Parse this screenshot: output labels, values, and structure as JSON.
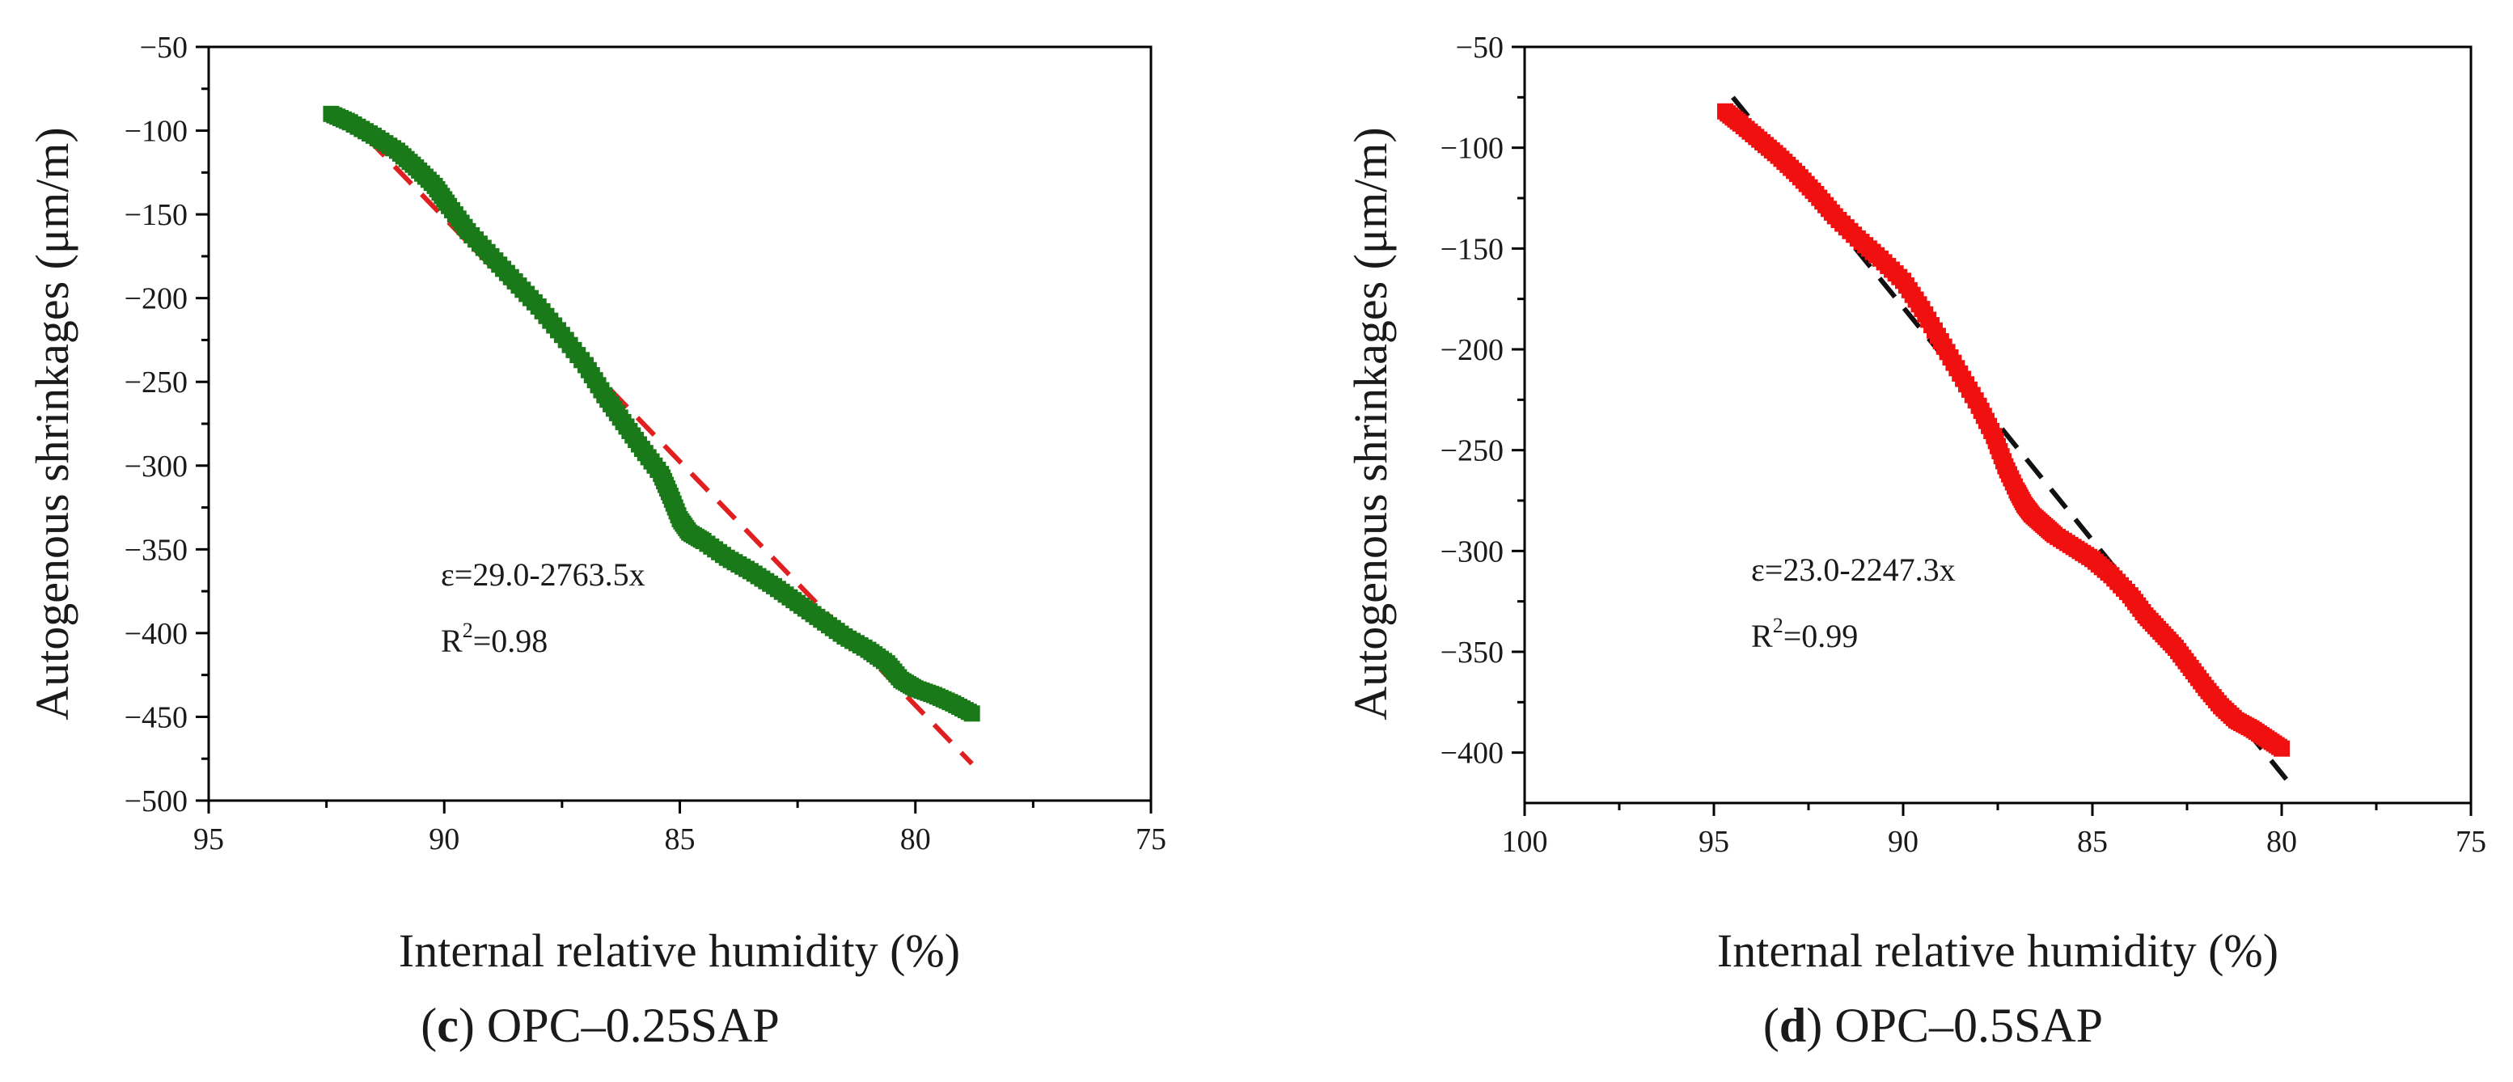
{
  "chart_data": [
    {
      "type": "scatter",
      "panel_letter": "c",
      "caption_text": "OPC–0.25SAP",
      "xlabel": "Internal relative humidity (%)",
      "ylabel": "Autogenous shrinkages (μm/m)",
      "xlim": [
        95,
        75
      ],
      "ylim": [
        -500,
        -50
      ],
      "xticks": [
        "95",
        "90",
        "85",
        "80",
        "75"
      ],
      "xtick_values": [
        95,
        90,
        85,
        80,
        75
      ],
      "yticks": [
        "−50",
        "−100",
        "−150",
        "−200",
        "−250",
        "−300",
        "−350",
        "−400",
        "−450",
        "−500"
      ],
      "ytick_values": [
        -50,
        -100,
        -150,
        -200,
        -250,
        -300,
        -350,
        -400,
        -450,
        -500
      ],
      "equation": "ε=29.0-2763.5x",
      "r2_prefix": "R",
      "r2_sup": "2",
      "r2_value": "=0.98",
      "series": [
        {
          "name": "measured",
          "color": "#1a7a1a",
          "x": [
            92.4,
            92.0,
            91.5,
            91.0,
            90.6,
            90.2,
            89.9,
            89.5,
            89.0,
            88.5,
            88.0,
            87.5,
            87.0,
            86.6,
            86.2,
            85.8,
            85.4,
            85.2,
            85.0,
            84.8,
            84.5,
            84.0,
            83.5,
            83.0,
            82.5,
            82.0,
            81.5,
            81.0,
            80.6,
            80.3,
            80.0,
            79.6,
            79.2,
            78.8
          ],
          "y": [
            -90,
            -95,
            -103,
            -112,
            -122,
            -133,
            -145,
            -160,
            -175,
            -190,
            -205,
            -222,
            -240,
            -258,
            -274,
            -290,
            -305,
            -318,
            -332,
            -340,
            -345,
            -355,
            -363,
            -372,
            -382,
            -392,
            -402,
            -410,
            -418,
            -428,
            -433,
            -437,
            -442,
            -448
          ]
        },
        {
          "name": "fit",
          "color": "#e02020",
          "style": "dashed",
          "x": [
            92.2,
            78.8
          ],
          "y": [
            -88,
            -478
          ]
        }
      ]
    },
    {
      "type": "scatter",
      "panel_letter": "d",
      "caption_text": "OPC–0.5SAP",
      "xlabel": "Internal relative humidity (%)",
      "ylabel": "Autogenous shrinkages (μm/m)",
      "xlim": [
        100,
        75
      ],
      "ylim": [
        -425,
        -50
      ],
      "xticks": [
        "100",
        "95",
        "90",
        "85",
        "80",
        "75"
      ],
      "xtick_values": [
        100,
        95,
        90,
        85,
        80,
        75
      ],
      "yticks": [
        "−50",
        "−100",
        "−150",
        "−200",
        "−250",
        "−300",
        "−350",
        "−400"
      ],
      "ytick_values": [
        -50,
        -100,
        -150,
        -200,
        -250,
        -300,
        -350,
        -400
      ],
      "equation": "ε=23.0-2247.3x",
      "r2_prefix": "R",
      "r2_sup": "2",
      "r2_value": "=0.99",
      "series": [
        {
          "name": "measured",
          "color": "#f01010",
          "x": [
            94.7,
            94.3,
            93.8,
            93.3,
            92.8,
            92.3,
            91.8,
            91.2,
            90.6,
            90.0,
            89.5,
            89.0,
            88.5,
            88.0,
            87.6,
            87.3,
            87.0,
            86.8,
            86.6,
            86.3,
            86.0,
            85.5,
            85.0,
            84.5,
            84.0,
            83.6,
            83.2,
            82.8,
            82.4,
            82.0,
            81.6,
            81.2,
            80.8,
            80.4,
            80.0
          ],
          "y": [
            -82,
            -88,
            -96,
            -104,
            -113,
            -123,
            -134,
            -145,
            -155,
            -166,
            -180,
            -196,
            -212,
            -228,
            -243,
            -258,
            -270,
            -277,
            -282,
            -287,
            -292,
            -298,
            -304,
            -312,
            -322,
            -332,
            -340,
            -348,
            -358,
            -368,
            -377,
            -384,
            -388,
            -393,
            -398
          ]
        },
        {
          "name": "fit",
          "color": "#111111",
          "style": "dashed",
          "x": [
            94.5,
            79.8
          ],
          "y": [
            -75,
            -415
          ]
        }
      ]
    }
  ]
}
